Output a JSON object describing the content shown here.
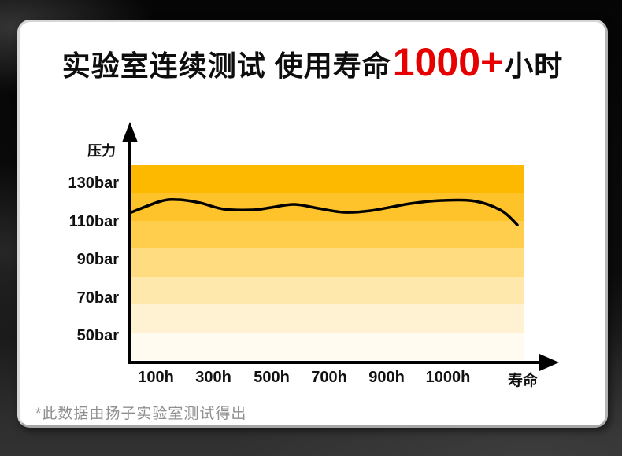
{
  "page": {
    "title_black": "实验室连续测试 使用寿命",
    "title_highlight": "1000+",
    "title_suffix": "小时",
    "highlight_color": "#e60000",
    "footnote": "*此数据由扬子实验室测试得出"
  },
  "chart": {
    "y_axis_label": "压力",
    "x_axis_label": "寿命",
    "y_ticks": [
      "130bar",
      "110bar",
      "90bar",
      "70bar",
      "50bar"
    ],
    "x_ticks": [
      "100h",
      "300h",
      "500h",
      "700h",
      "900h",
      "1000h"
    ],
    "band_colors": [
      "#fdb900",
      "#fec32a",
      "#ffce4d",
      "#ffdc80",
      "#ffe8ab",
      "#fff2d2",
      "#fffbf0"
    ],
    "curve_color": "#000000",
    "curve_points": [
      [
        1,
        60
      ],
      [
        38,
        46
      ],
      [
        61,
        44
      ],
      [
        88,
        48
      ],
      [
        118,
        56
      ],
      [
        155,
        57
      ],
      [
        178,
        54
      ],
      [
        208,
        50
      ],
      [
        238,
        55
      ],
      [
        271,
        60
      ],
      [
        305,
        58
      ],
      [
        355,
        49
      ],
      [
        395,
        45
      ],
      [
        438,
        46
      ],
      [
        471,
        58
      ],
      [
        491,
        76
      ]
    ]
  },
  "chart_data": {
    "type": "line",
    "title": "实验室连续测试 使用寿命1000+小时",
    "xlabel": "寿命 (h)",
    "ylabel": "压力 (bar)",
    "x": [
      100,
      300,
      500,
      700,
      900,
      1000
    ],
    "series": [
      {
        "name": "压力",
        "values": [
          120.5,
          117,
          117.5,
          116,
          117.5,
          121
        ]
      }
    ],
    "end_of_life_pressure_bar": 108,
    "y_tick_values_bar": [
      130,
      110,
      90,
      70,
      50
    ],
    "ylim": [
      50,
      140
    ],
    "grid": "off",
    "background": "seven horizontal bands fading from orange (top) to near-white (bottom)",
    "legend_position": "none",
    "annotation": "*此数据由扬子实验室测试得出"
  }
}
